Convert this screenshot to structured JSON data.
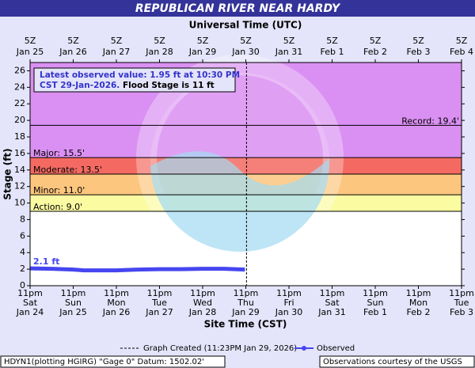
{
  "chart_data": {
    "type": "line",
    "title": "REPUBLICAN RIVER NEAR HARDY",
    "top_axis_title": "Universal Time (UTC)",
    "x_axis_title": "Site Time (CST)",
    "y_axis_title": "Stage (ft)",
    "xlim": [
      "2026-01-24 23:00",
      "2026-02-03 23:00"
    ],
    "xticks": [
      {
        "value": "2026-01-24 23:00",
        "label": [
          "11pm",
          "Sat",
          "Jan 24"
        ]
      },
      {
        "value": "2026-01-25 23:00",
        "label": [
          "11pm",
          "Sun",
          "Jan 25"
        ]
      },
      {
        "value": "2026-01-26 23:00",
        "label": [
          "11pm",
          "Mon",
          "Jan 26"
        ]
      },
      {
        "value": "2026-01-27 23:00",
        "label": [
          "11pm",
          "Tue",
          "Jan 27"
        ]
      },
      {
        "value": "2026-01-28 23:00",
        "label": [
          "11pm",
          "Wed",
          "Jan 28"
        ]
      },
      {
        "value": "2026-01-29 23:00",
        "label": [
          "11pm",
          "Thu",
          "Jan 29"
        ]
      },
      {
        "value": "2026-01-30 23:00",
        "label": [
          "11pm",
          "Fri",
          "Jan 30"
        ]
      },
      {
        "value": "2026-01-31 23:00",
        "label": [
          "11pm",
          "Sat",
          "Jan 31"
        ]
      },
      {
        "value": "2026-02-01 23:00",
        "label": [
          "11pm",
          "Sun",
          "Feb 1"
        ]
      },
      {
        "value": "2026-02-02 23:00",
        "label": [
          "11pm",
          "Mon",
          "Feb 2"
        ]
      },
      {
        "value": "2026-02-03 23:00",
        "label": [
          "11pm",
          "Tue",
          "Feb 3"
        ]
      }
    ],
    "top_xticks": [
      {
        "value": "2026-01-24 23:00",
        "label": [
          "5Z",
          "Jan 25"
        ]
      },
      {
        "value": "2026-01-25 23:00",
        "label": [
          "5Z",
          "Jan 26"
        ]
      },
      {
        "value": "2026-01-26 23:00",
        "label": [
          "5Z",
          "Jan 27"
        ]
      },
      {
        "value": "2026-01-27 23:00",
        "label": [
          "5Z",
          "Jan 28"
        ]
      },
      {
        "value": "2026-01-28 23:00",
        "label": [
          "5Z",
          "Jan 29"
        ]
      },
      {
        "value": "2026-01-29 23:00",
        "label": [
          "5Z",
          "Jan 30"
        ]
      },
      {
        "value": "2026-01-30 23:00",
        "label": [
          "5Z",
          "Jan 31"
        ]
      },
      {
        "value": "2026-01-31 23:00",
        "label": [
          "5Z",
          "Feb  1"
        ]
      },
      {
        "value": "2026-02-01 23:00",
        "label": [
          "5Z",
          "Feb  2"
        ]
      },
      {
        "value": "2026-02-02 23:00",
        "label": [
          "5Z",
          "Feb  3"
        ]
      },
      {
        "value": "2026-02-03 23:00",
        "label": [
          "5Z",
          "Feb  4"
        ]
      }
    ],
    "ylim": [
      0,
      27
    ],
    "yticks": [
      0,
      2,
      4,
      6,
      8,
      10,
      12,
      14,
      16,
      18,
      20,
      22,
      24,
      26
    ],
    "thresholds": [
      {
        "label": "Action: 9.0'",
        "value": 9,
        "color": "#fbfba2"
      },
      {
        "label": "Minor: 11.0'",
        "value": 11,
        "color": "#fcc67e"
      },
      {
        "label": "Moderate: 13.5'",
        "value": 13.5,
        "color": "#f46a62"
      },
      {
        "label": "Major: 15.5'",
        "value": 15.5,
        "color": "#da90f2"
      }
    ],
    "record": {
      "label": "Record: 19.4'",
      "value": 19.4
    },
    "created": {
      "value": "2026-01-29 23:23",
      "label": "Graph Created (11:23PM Jan 29, 2026)"
    },
    "series": [
      {
        "name": "Observed",
        "color": "#4646f0",
        "x": [
          "2026-01-24 23:00",
          "2026-01-25 11:00",
          "2026-01-25 23:00",
          "2026-01-26 05:00",
          "2026-01-26 23:00",
          "2026-01-27 11:00",
          "2026-01-27 23:00",
          "2026-01-28 11:00",
          "2026-01-28 23:00",
          "2026-01-29 11:00",
          "2026-01-29 22:30"
        ],
        "values": [
          2.1,
          2.05,
          1.95,
          1.85,
          1.85,
          1.95,
          2.0,
          2.0,
          2.05,
          2.05,
          1.95
        ],
        "value_labels": [
          "2.1 ft",
          null,
          null,
          null,
          null,
          null,
          null,
          null,
          null,
          null,
          null
        ]
      }
    ],
    "info_box": {
      "line1": "Latest observed value: 1.95 ft at 10:30 PM",
      "line2a": "CST 29-Jan-2026.",
      "line2b": "Flood Stage is 11 ft"
    },
    "footer_left": "HDYN1(plotting HGIRG) \"Gage 0\" Datum: 1502.02'",
    "footer_right": "Observations courtesy of the USGS"
  }
}
